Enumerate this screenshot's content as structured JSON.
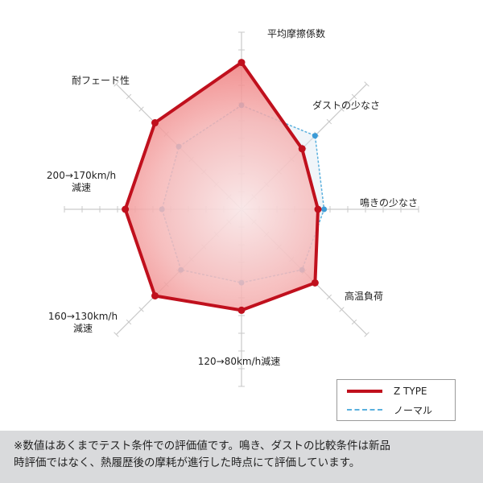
{
  "chart_data": {
    "type": "radar",
    "axes": [
      "平均摩擦係数",
      "ダストの少なさ",
      "鳴きの少なさ",
      "高温負荷",
      "120→80km/h減速",
      "160→130km/h\n減速",
      "200→170km/h\n減速",
      "耐フェード性"
    ],
    "rmax": 5,
    "grid": true,
    "series": [
      {
        "name": "Z TYPE",
        "values": [
          4.8,
          2.8,
          2.5,
          3.4,
          3.3,
          4.0,
          3.8,
          4.0
        ],
        "color": "#c0101d",
        "style": "solid"
      },
      {
        "name": "ノーマル",
        "values": [
          3.4,
          3.4,
          2.7,
          2.8,
          2.4,
          2.8,
          2.6,
          2.9
        ],
        "color": "#5ab0de",
        "style": "dashed"
      }
    ],
    "legend_position": "bottom-right"
  },
  "legend": {
    "items": [
      {
        "label": "Z TYPE"
      },
      {
        "label": "ノーマル"
      }
    ]
  },
  "footnote": {
    "line1": "※数値はあくまでテスト条件での評価値です。鳴き、ダストの比較条件は新品",
    "line2": "時評価ではなく、熱履歴後の摩耗が進行した時点にて評価しています。"
  }
}
